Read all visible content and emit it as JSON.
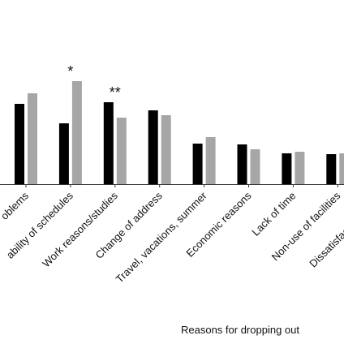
{
  "chart_data": {
    "type": "bar",
    "categories": [
      "oblems",
      "ability of schedules",
      "Work reasons/studies",
      "Change of address",
      "Travel, vacations, summer",
      "Economic reasons",
      "Lack of time",
      "Non-use of facilities",
      "Dissatisfaction with th"
    ],
    "series": [
      {
        "values": [
          99,
          75,
          101,
          91,
          50,
          49,
          38,
          37,
          0
        ]
      },
      {
        "values": [
          112,
          127,
          82,
          85,
          58,
          43,
          40,
          38,
          0
        ]
      }
    ],
    "series_colors": [
      "#000000",
      "#a6a6a6"
    ],
    "significance": [
      "",
      "*",
      "**",
      "",
      "",
      "",
      "",
      "",
      ""
    ],
    "xlabel": "Reasons for dropping  out",
    "ylabel": "",
    "ylim": [
      0,
      150
    ],
    "grid": false,
    "legend": "none"
  }
}
